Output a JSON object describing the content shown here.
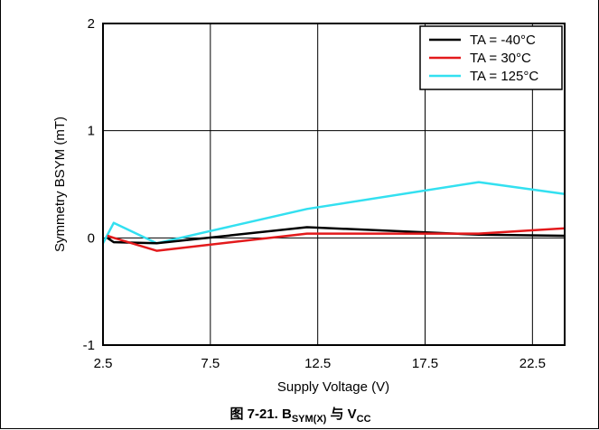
{
  "chart_data": {
    "type": "line",
    "title": "",
    "xlabel": "Supply Voltage (V)",
    "ylabel": "Symmetry BSYM (mT)",
    "xlim": [
      2.5,
      24
    ],
    "ylim": [
      -1,
      2
    ],
    "xticks": [
      2.5,
      7.5,
      12.5,
      17.5,
      22.5
    ],
    "xtick_labels": [
      "2.5",
      "7.5",
      "12.5",
      "17.5",
      "22.5"
    ],
    "yticks": [
      -1,
      0,
      1,
      2
    ],
    "ytick_labels": [
      "-1",
      "0",
      "1",
      "2"
    ],
    "grid": true,
    "legend_position": "top-right",
    "series": [
      {
        "name": "TA = -40°C",
        "color": "#000000",
        "x": [
          2.7,
          3.0,
          5.0,
          12.0,
          20.0,
          24.0
        ],
        "y": [
          0.0,
          -0.04,
          -0.05,
          0.1,
          0.03,
          0.02
        ]
      },
      {
        "name": "TA = 30°C",
        "color": "#e31a1c",
        "x": [
          2.7,
          3.0,
          5.0,
          12.0,
          20.0,
          24.0
        ],
        "y": [
          0.02,
          0.0,
          -0.12,
          0.04,
          0.04,
          0.09
        ]
      },
      {
        "name": "TA = 125°C",
        "color": "#33e0f0",
        "x": [
          2.5,
          3.0,
          5.0,
          12.0,
          20.0,
          24.0
        ],
        "y": [
          -0.05,
          0.14,
          -0.05,
          0.27,
          0.52,
          0.41
        ]
      }
    ]
  },
  "caption": {
    "prefix": "图 7-21. B",
    "sub1": "SYM(X)",
    "middle": " 与 V",
    "sub2": "CC"
  }
}
